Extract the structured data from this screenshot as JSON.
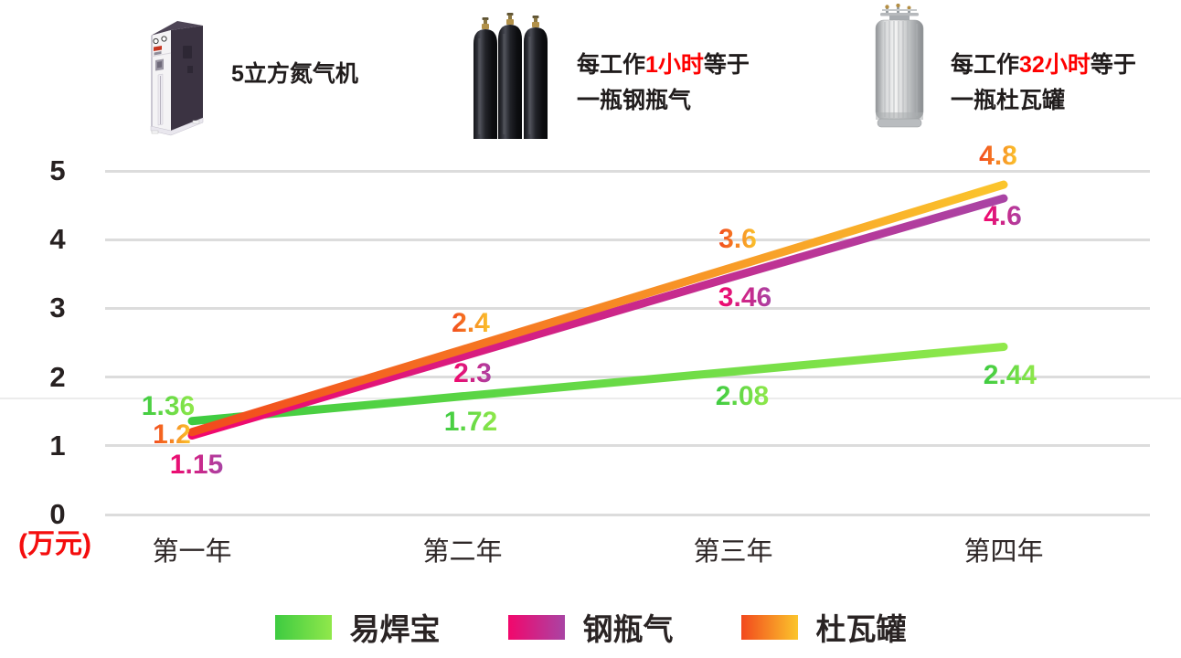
{
  "header": {
    "highlight_color": "#fe0000",
    "machine_label": "5立方氮气机",
    "cylinder_caption": {
      "prefix": "每工作",
      "highlight": "1小时",
      "suffix": "等于",
      "line2": "一瓶钢瓶气"
    },
    "dewar_caption": {
      "prefix": "每工作",
      "highlight": "32小时",
      "suffix": "等于",
      "line2": "一瓶杜瓦罐"
    }
  },
  "chart_data": {
    "type": "line",
    "categories": [
      "第一年",
      "第二年",
      "第三年",
      "第四年"
    ],
    "series": [
      {
        "name": "易焊宝",
        "values": [
          1.36,
          1.72,
          2.08,
          2.44
        ],
        "point_labels": [
          "1.36",
          "1.72",
          "2.08",
          "2.44"
        ],
        "gradient": [
          "#3ecb41",
          "#90e84b"
        ]
      },
      {
        "name": "钢瓶气",
        "values": [
          1.15,
          2.3,
          3.46,
          4.6
        ],
        "point_labels": [
          "1.15",
          "2.3",
          "3.46",
          "4.6"
        ],
        "gradient": [
          "#f2076c",
          "#a944a4"
        ]
      },
      {
        "name": "杜瓦罐",
        "values": [
          1.2,
          2.4,
          3.6,
          4.8
        ],
        "point_labels": [
          "1.2",
          "2.4",
          "3.6",
          "4.8"
        ],
        "gradient": [
          "#f2491d",
          "#fbc52c"
        ]
      }
    ],
    "y_ticks": [
      "0",
      "1",
      "2",
      "3",
      "4",
      "5"
    ],
    "ylim": [
      0,
      5
    ],
    "y_unit_label": "(万元)",
    "y_unit_color": "#f40d0d",
    "grid": true,
    "gridline_color": "#dcdcdc",
    "legend_position": "bottom",
    "xlabel": "",
    "ylabel": "万元"
  }
}
